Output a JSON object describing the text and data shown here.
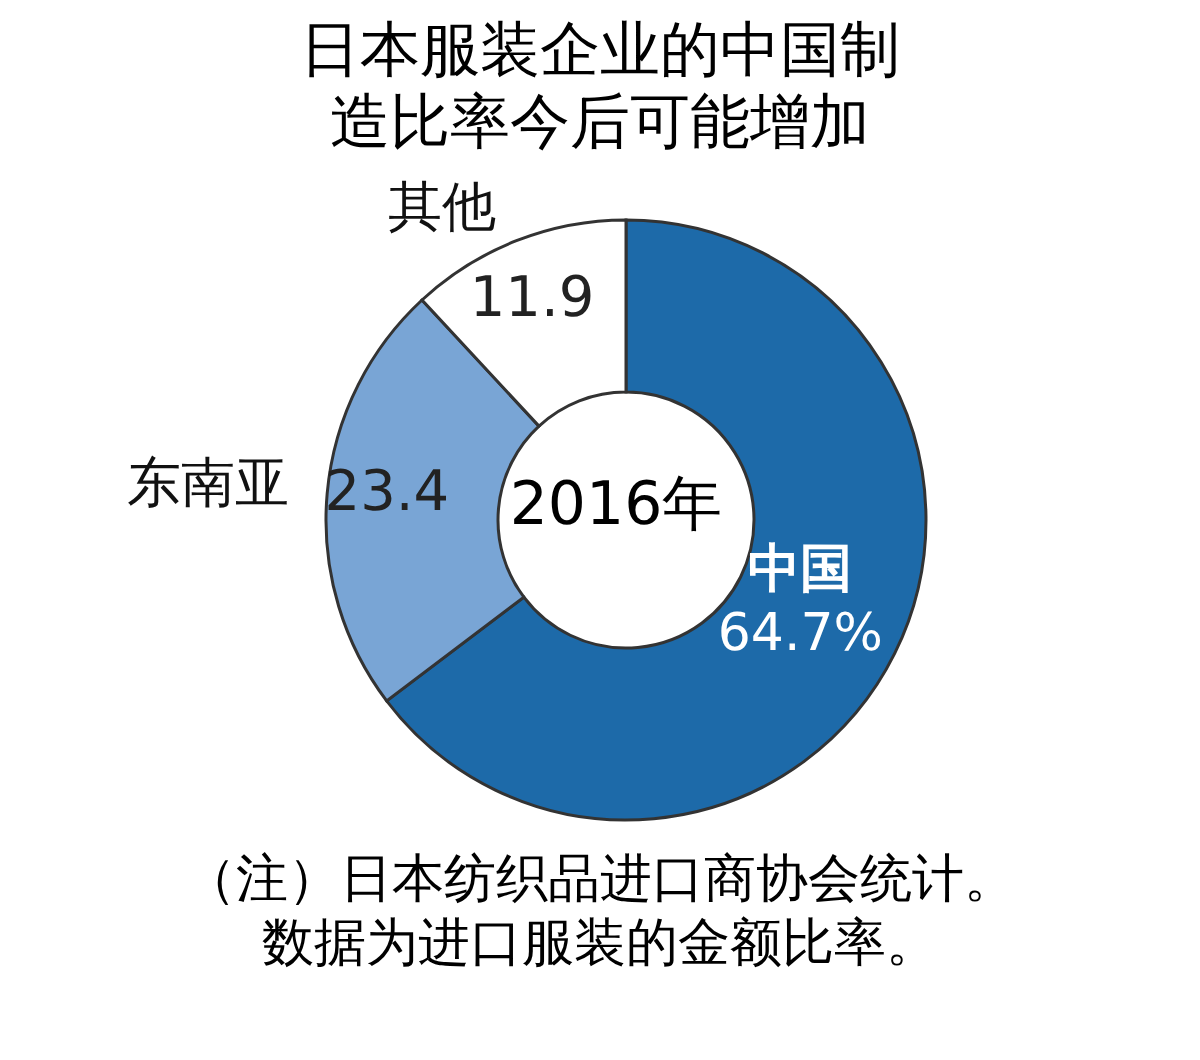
{
  "chart_data": {
    "type": "donut",
    "title": "日本服装企业的中国制造比率今后可能增加",
    "subtitle": "2016年",
    "categories": [
      "中国",
      "东南亚",
      "其他"
    ],
    "values": [
      64.7,
      23.4,
      11.9
    ],
    "value_labels": [
      "64.7%",
      "23.4",
      "11.9"
    ],
    "colors": [
      "#1d6aa9",
      "#79a5d5",
      "#ffffff"
    ],
    "annotations": [
      "（注）日本纺织品进口商协会统计。数据为进口服装的金额比率。"
    ]
  }
}
